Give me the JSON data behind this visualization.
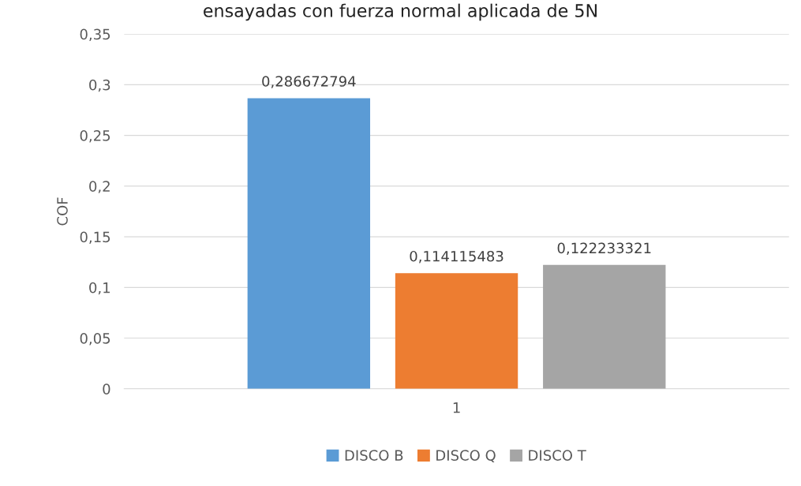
{
  "chart_data": {
    "type": "bar",
    "title": "ensayadas con fuerza normal aplicada de 5N",
    "ylabel": "COF",
    "categories": [
      "1"
    ],
    "series": [
      {
        "name": "DISCO B",
        "color": "#5b9bd5",
        "values": [
          0.286672794
        ],
        "value_labels": [
          "0,286672794"
        ]
      },
      {
        "name": "DISCO Q",
        "color": "#ed7d31",
        "values": [
          0.114115483
        ],
        "value_labels": [
          "0,114115483"
        ]
      },
      {
        "name": "DISCO T",
        "color": "#a5a5a5",
        "values": [
          0.122233321
        ],
        "value_labels": [
          "0,122233321"
        ]
      }
    ],
    "ylim": [
      0,
      0.35
    ],
    "yticks": [
      {
        "value": 0,
        "label": "0"
      },
      {
        "value": 0.05,
        "label": "0,05"
      },
      {
        "value": 0.1,
        "label": "0,1"
      },
      {
        "value": 0.15,
        "label": "0,15"
      },
      {
        "value": 0.2,
        "label": "0,2"
      },
      {
        "value": 0.25,
        "label": "0,25"
      },
      {
        "value": 0.3,
        "label": "0,3"
      },
      {
        "value": 0.35,
        "label": "0,35"
      }
    ],
    "grid": "y",
    "legend": "bottom"
  }
}
